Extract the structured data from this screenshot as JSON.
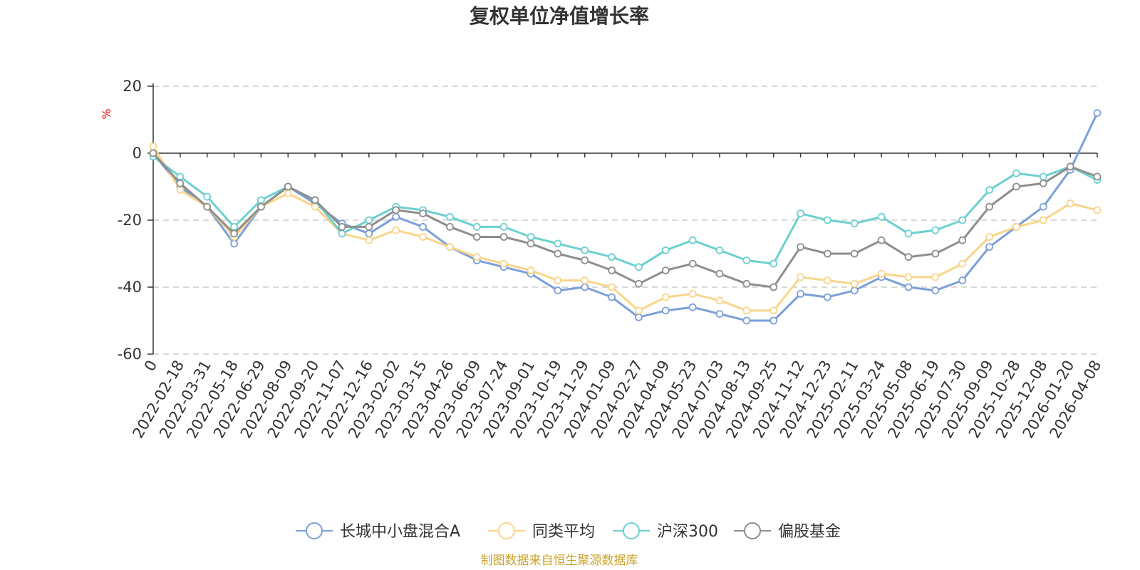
{
  "chart_data": {
    "type": "line",
    "title": "复权单位净值增长率",
    "ylabel": "%",
    "ylim": [
      -60,
      20
    ],
    "yticks": [
      20,
      0,
      -20,
      -40,
      -60
    ],
    "categories": [
      "0",
      "2022-02-18",
      "2022-03-31",
      "2022-05-18",
      "2022-06-29",
      "2022-08-09",
      "2022-09-20",
      "2022-11-07",
      "2022-12-16",
      "2023-02-02",
      "2023-03-15",
      "2023-04-26",
      "2023-06-09",
      "2023-07-24",
      "2023-09-01",
      "2023-10-19",
      "2023-11-29",
      "2024-01-09",
      "2024-02-27",
      "2024-04-09",
      "2024-05-23",
      "2024-07-03",
      "2024-08-13",
      "2024-09-25",
      "2024-11-12",
      "2024-12-23",
      "2025-02-11",
      "2025-03-24",
      "2025-05-08",
      "2025-06-19",
      "2025-07-30",
      "2025-09-09",
      "2025-10-28",
      "2025-12-08",
      "2026-01-20",
      "2026-04-08"
    ],
    "series": [
      {
        "name": "长城中小盘混合A",
        "color": "#7b9fd8",
        "values": [
          0,
          -10,
          -16,
          -27,
          -16,
          -10,
          -15,
          -21,
          -24,
          -19,
          -22,
          -28,
          -32,
          -34,
          -36,
          -41,
          -40,
          -43,
          -49,
          -47,
          -46,
          -48,
          -50,
          -50,
          -42,
          -43,
          -41,
          -37,
          -40,
          -41,
          -38,
          -28,
          -22,
          -16,
          -5,
          12
        ]
      },
      {
        "name": "同类平均",
        "color": "#f9d58a",
        "values": [
          2,
          -11,
          -16,
          -25,
          -16,
          -12,
          -16,
          -24,
          -26,
          -23,
          -25,
          -28,
          -31,
          -33,
          -35,
          -38,
          -38,
          -40,
          -47,
          -43,
          -42,
          -44,
          -47,
          -47,
          -37,
          -38,
          -39,
          -36,
          -37,
          -37,
          -33,
          -25,
          -22,
          -20,
          -15,
          -17
        ]
      },
      {
        "name": "沪深300",
        "color": "#6cd0cf",
        "values": [
          -1,
          -7,
          -13,
          -22,
          -14,
          -10,
          -14,
          -24,
          -20,
          -16,
          -17,
          -19,
          -22,
          -22,
          -25,
          -27,
          -29,
          -31,
          -34,
          -29,
          -26,
          -29,
          -32,
          -33,
          -18,
          -20,
          -21,
          -19,
          -24,
          -23,
          -20,
          -11,
          -6,
          -7,
          -4,
          -8
        ]
      },
      {
        "name": "偏股基金",
        "color": "#8e8e8e",
        "values": [
          0,
          -9,
          -16,
          -24,
          -16,
          -10,
          -14,
          -22,
          -22,
          -17,
          -18,
          -22,
          -25,
          -25,
          -27,
          -30,
          -32,
          -35,
          -39,
          -35,
          -33,
          -36,
          -39,
          -40,
          -28,
          -30,
          -30,
          -26,
          -31,
          -30,
          -26,
          -16,
          -10,
          -9,
          -4,
          -7
        ]
      }
    ],
    "legend_position": "bottom-center",
    "grid": true
  },
  "source_note": "制图数据来自恒生聚源数据库"
}
